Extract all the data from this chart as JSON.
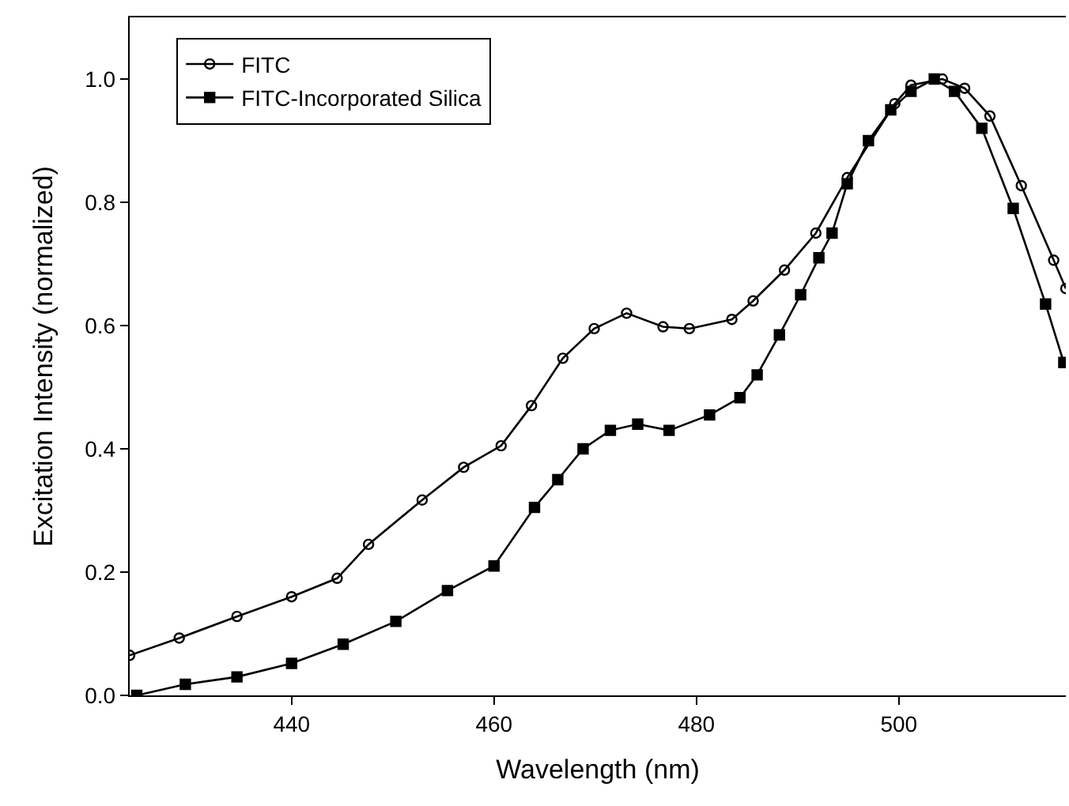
{
  "chart_data": {
    "type": "line",
    "xlabel": "Wavelength (nm)",
    "ylabel": "Excitation Intensity (normalized)",
    "xlim": [
      424,
      516.5
    ],
    "xticks": [
      440,
      460,
      480,
      500
    ],
    "ylim": [
      0,
      1.1
    ],
    "yticks": [
      {
        "value": 0,
        "label": "0.0"
      },
      {
        "value": 0.2,
        "label": "0.2"
      },
      {
        "value": 0.4,
        "label": "0.4"
      },
      {
        "value": 0.6,
        "label": "0.6"
      },
      {
        "value": 0.8,
        "label": "0.8"
      },
      {
        "value": 1,
        "label": "1.0"
      }
    ],
    "legend": "top left",
    "line_style": "solid",
    "series": [
      {
        "name": "FITC",
        "color": "#000000",
        "marker": "circle",
        "x": [
          424,
          428.9,
          434.6,
          440,
          444.5,
          447.6,
          452.9,
          457,
          460.7,
          463.7,
          466.8,
          469.9,
          473.1,
          476.7,
          479.3,
          483.5,
          485.6,
          488.7,
          491.8,
          494.9,
          499.6,
          501.2,
          504.3,
          506.5,
          509,
          512.1,
          515.3,
          516.5
        ],
        "values": [
          0.065,
          0.093,
          0.128,
          0.16,
          0.19,
          0.245,
          0.317,
          0.37,
          0.405,
          0.47,
          0.547,
          0.595,
          0.62,
          0.598,
          0.595,
          0.61,
          0.64,
          0.69,
          0.75,
          0.84,
          0.96,
          0.99,
          1.0,
          0.985,
          0.94,
          0.827,
          0.706,
          0.66
        ]
      },
      {
        "name": "FITC-Incorporated Silica",
        "color": "#000000",
        "marker": "square",
        "x": [
          424.7,
          429.5,
          434.6,
          440,
          445.1,
          450.3,
          455.4,
          460,
          464,
          466.3,
          468.8,
          471.5,
          474.2,
          477.3,
          481.3,
          484.3,
          486,
          488.2,
          490.3,
          492.1,
          493.4,
          494.9,
          497,
          499.2,
          501.2,
          503.5,
          505.5,
          508.2,
          511.3,
          514.5,
          516.3
        ],
        "values": [
          0.0,
          0.018,
          0.03,
          0.052,
          0.083,
          0.12,
          0.17,
          0.21,
          0.305,
          0.35,
          0.4,
          0.43,
          0.44,
          0.43,
          0.455,
          0.483,
          0.52,
          0.585,
          0.65,
          0.71,
          0.75,
          0.83,
          0.9,
          0.95,
          0.98,
          1.0,
          0.98,
          0.92,
          0.79,
          0.635,
          0.54
        ]
      }
    ]
  }
}
